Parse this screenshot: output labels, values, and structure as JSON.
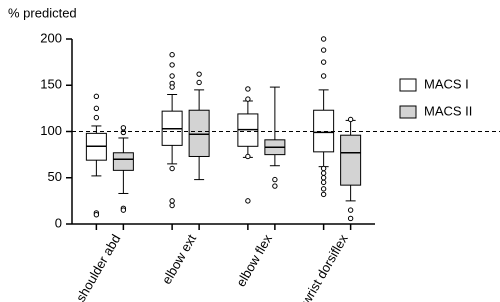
{
  "chart_data": {
    "type": "box",
    "y_label": "% predicted",
    "categories": [
      "shoulder abd",
      "elbow ext",
      "elbow flex",
      "wrist dorsiflex"
    ],
    "ylim": [
      0,
      200
    ],
    "yticks": [
      0,
      50,
      100,
      150,
      200
    ],
    "reference_line": 100,
    "legend_position": "right",
    "series": [
      {
        "name": "MACS I",
        "color": "#ffffff",
        "boxes": [
          {
            "min": 52,
            "q1": 69,
            "median": 84,
            "q3": 98,
            "max": 106,
            "outliers": [
              138,
              125,
              115,
              12,
              10
            ]
          },
          {
            "min": 65,
            "q1": 85,
            "median": 103,
            "q3": 122,
            "max": 140,
            "outliers": [
              183,
              172,
              160,
              152,
              148,
              60,
              25,
              20
            ]
          },
          {
            "min": 72,
            "q1": 84,
            "median": 102,
            "q3": 119,
            "max": 133,
            "outliers": [
              146,
              135,
              73,
              25
            ]
          },
          {
            "min": 62,
            "q1": 78,
            "median": 99,
            "q3": 123,
            "max": 145,
            "outliers": [
              200,
              188,
              175,
              160,
              60,
              55,
              50,
              45,
              38,
              32
            ]
          }
        ]
      },
      {
        "name": "MACS II",
        "color": "#d3d3d3",
        "boxes": [
          {
            "min": 33,
            "q1": 58,
            "median": 70,
            "q3": 77,
            "max": 93,
            "outliers": [
              104,
              99,
              17,
              15
            ]
          },
          {
            "min": 48,
            "q1": 73,
            "median": 97,
            "q3": 123,
            "max": 145,
            "outliers": [
              162,
              153
            ]
          },
          {
            "min": 63,
            "q1": 75,
            "median": 83,
            "q3": 91,
            "max": 148,
            "outliers": [
              48,
              41
            ]
          },
          {
            "min": 25,
            "q1": 42,
            "median": 77,
            "q3": 96,
            "max": 112,
            "outliers": [
              113,
              15,
              6
            ]
          }
        ]
      }
    ]
  }
}
